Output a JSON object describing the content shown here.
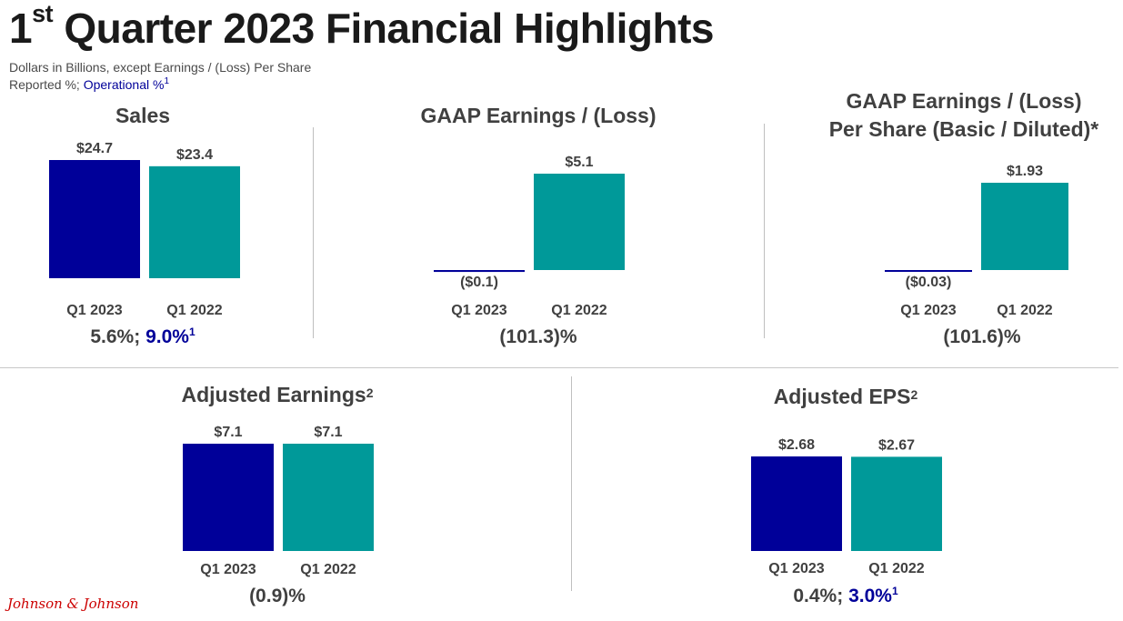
{
  "header": {
    "title_prefix": "1",
    "title_sup": "st",
    "title_rest": " Quarter 2023 Financial Highlights",
    "subtitle": "Dollars in Billions, except Earnings / (Loss) Per Share",
    "reported_label": "Reported %; ",
    "operational_label": "Operational %",
    "footnote_1": "1"
  },
  "colors": {
    "q1_2023": "#000099",
    "q1_2022": "#009999",
    "label_text": "#404040",
    "operational": "#000099"
  },
  "logo_text": "Johnson & Johnson",
  "chart_data": [
    {
      "id": "sales",
      "type": "bar",
      "title": "Sales",
      "title_line2": "",
      "title_sup": "",
      "categories": [
        "Q1 2023",
        "Q1 2022"
      ],
      "values": [
        24.7,
        23.4
      ],
      "value_labels": [
        "$24.7",
        "$23.4"
      ],
      "ylim": [
        0,
        24.7
      ],
      "growth_reported": "5.6%; ",
      "growth_operational": "9.0%",
      "growth_sup": "1"
    },
    {
      "id": "gaap-earnings",
      "type": "bar",
      "title": "GAAP Earnings / (Loss)",
      "title_line2": "",
      "title_sup": "",
      "categories": [
        "Q1 2023",
        "Q1 2022"
      ],
      "values": [
        -0.1,
        5.1
      ],
      "value_labels": [
        "($0.1)",
        "$5.1"
      ],
      "ylim": [
        0,
        5.1
      ],
      "growth_reported": "(101.3)%",
      "growth_operational": "",
      "growth_sup": ""
    },
    {
      "id": "gaap-eps",
      "type": "bar",
      "title": "GAAP Earnings / (Loss)",
      "title_line2": "Per Share (Basic / Diluted)*",
      "title_sup": "",
      "categories": [
        "Q1 2023",
        "Q1 2022"
      ],
      "values": [
        -0.03,
        1.93
      ],
      "value_labels": [
        "($0.03)",
        "$1.93"
      ],
      "ylim": [
        0,
        1.93
      ],
      "growth_reported": "(101.6)%",
      "growth_operational": "",
      "growth_sup": ""
    },
    {
      "id": "adjusted-earnings",
      "type": "bar",
      "title": "Adjusted Earnings",
      "title_line2": "",
      "title_sup": "2",
      "categories": [
        "Q1 2023",
        "Q1 2022"
      ],
      "values": [
        7.1,
        7.1
      ],
      "value_labels": [
        "$7.1",
        "$7.1"
      ],
      "ylim": [
        0,
        7.1
      ],
      "growth_reported": "(0.9)%",
      "growth_operational": "",
      "growth_sup": ""
    },
    {
      "id": "adjusted-eps",
      "type": "bar",
      "title": "Adjusted EPS",
      "title_line2": "",
      "title_sup": "2",
      "categories": [
        "Q1 2023",
        "Q1 2022"
      ],
      "values": [
        2.68,
        2.67
      ],
      "value_labels": [
        "$2.68",
        "$2.67"
      ],
      "ylim": [
        0,
        2.68
      ],
      "growth_reported": "0.4%; ",
      "growth_operational": "3.0%",
      "growth_sup": "1"
    }
  ]
}
